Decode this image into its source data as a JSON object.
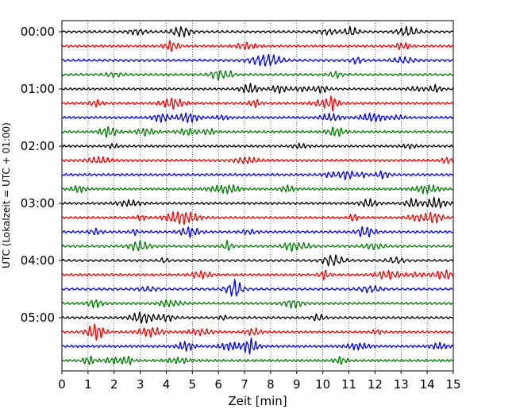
{
  "chart_data": {
    "type": "line",
    "title": "",
    "xlabel": "Zeit  [min]",
    "ylabel": "UTC (Lokalzeit = UTC + 01:00)",
    "xlim": [
      0,
      15
    ],
    "x_ticks": [
      "0",
      "1",
      "2",
      "3",
      "4",
      "5",
      "6",
      "7",
      "8",
      "9",
      "10",
      "11",
      "12",
      "13",
      "14",
      "15"
    ],
    "y_ticks": [
      "00:00",
      "01:00",
      "02:00",
      "03:00",
      "04:00",
      "05:00"
    ],
    "grid": "vertical dotted lines at each minute",
    "trace_interval_minutes": 15,
    "trace_count": 24,
    "trace_colors": [
      "#000000",
      "#ff0000",
      "#0000ff",
      "#008000"
    ],
    "traces": [
      {
        "start": "00:00",
        "color": "#000000"
      },
      {
        "start": "00:15",
        "color": "#ff0000"
      },
      {
        "start": "00:30",
        "color": "#0000ff"
      },
      {
        "start": "00:45",
        "color": "#008000"
      },
      {
        "start": "01:00",
        "color": "#000000"
      },
      {
        "start": "01:15",
        "color": "#ff0000"
      },
      {
        "start": "01:30",
        "color": "#0000ff"
      },
      {
        "start": "01:45",
        "color": "#008000"
      },
      {
        "start": "02:00",
        "color": "#000000"
      },
      {
        "start": "02:15",
        "color": "#ff0000"
      },
      {
        "start": "02:30",
        "color": "#0000ff"
      },
      {
        "start": "02:45",
        "color": "#008000"
      },
      {
        "start": "03:00",
        "color": "#000000"
      },
      {
        "start": "03:15",
        "color": "#ff0000"
      },
      {
        "start": "03:30",
        "color": "#0000ff"
      },
      {
        "start": "03:45",
        "color": "#008000"
      },
      {
        "start": "04:00",
        "color": "#000000"
      },
      {
        "start": "04:15",
        "color": "#ff0000"
      },
      {
        "start": "04:30",
        "color": "#0000ff"
      },
      {
        "start": "04:45",
        "color": "#008000"
      },
      {
        "start": "05:00",
        "color": "#000000"
      },
      {
        "start": "05:15",
        "color": "#ff0000"
      },
      {
        "start": "05:30",
        "color": "#0000ff"
      },
      {
        "start": "05:45",
        "color": "#008000"
      }
    ]
  }
}
